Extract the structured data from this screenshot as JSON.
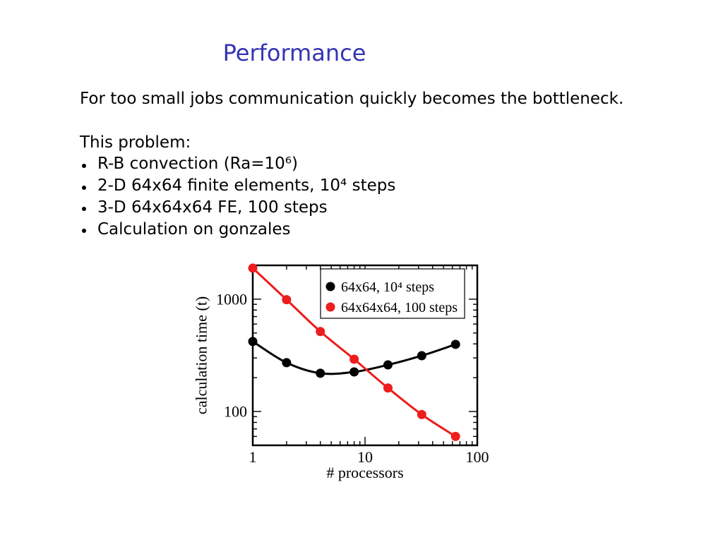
{
  "slide": {
    "title": "Performance",
    "intro": "For too small jobs communication quickly becomes the bottleneck.",
    "problem_heading": "This problem:",
    "bullets": [
      "R-B convection (Ra=10⁶)",
      "2-D 64x64 finite elements, 10⁴ steps",
      "3-D 64x64x64 FE, 100 steps",
      "Calculation on gonzales"
    ]
  },
  "colors": {
    "background": "#ffffff",
    "title": "#3434b4",
    "text": "#000000"
  },
  "chart_data": {
    "type": "line",
    "xlabel": "# processors",
    "ylabel": "calculation time (t)",
    "xscale": "log",
    "yscale": "log",
    "xlim": [
      1,
      100
    ],
    "ylim": [
      50,
      2000
    ],
    "x_ticks": [
      1,
      10,
      100
    ],
    "x_tick_labels": [
      "1",
      "10",
      "100"
    ],
    "y_ticks": [
      100,
      1000
    ],
    "y_tick_labels": [
      "100",
      "1000"
    ],
    "x": [
      1,
      2,
      4,
      8,
      16,
      32,
      64
    ],
    "series": [
      {
        "name": "64x64, 10⁴ steps",
        "color": "#000000",
        "values": [
          420,
          272,
          219,
          225,
          260,
          314,
          396
        ]
      },
      {
        "name": "64x64x64, 100 steps",
        "color": "#ee1c1c",
        "values": [
          1890,
          990,
          515,
          292,
          162,
          94,
          60
        ]
      }
    ],
    "grid": false,
    "legend": "top-right"
  }
}
